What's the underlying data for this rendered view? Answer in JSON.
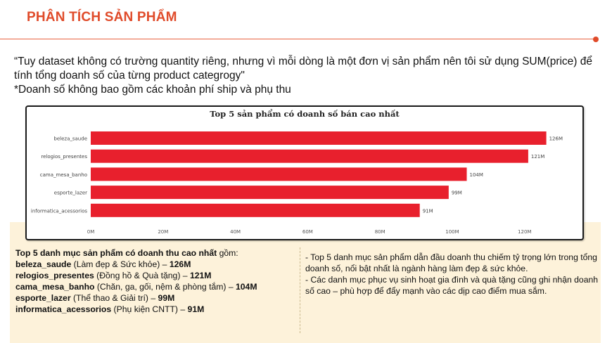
{
  "header": {
    "title": "PHÂN TÍCH SẢN PHẨM"
  },
  "quote": {
    "line1": "“Tuy dataset không có trường quantity riêng, nhưng vì mỗi dòng là một đơn vị sản phẩm nên tôi sử dụng SUM(price) để tính tổng doanh số của từng product categrogy\"",
    "line2": "*Doanh số không bao gồm các khoản phí ship và phụ thu"
  },
  "chart_data": {
    "type": "bar",
    "orientation": "horizontal",
    "title": "Top 5 sản phẩm có doanh số bán cao nhất",
    "categories": [
      "beleza_saude",
      "relogios_presentes",
      "cama_mesa_banho",
      "esporte_lazer",
      "informatica_acessorios"
    ],
    "values": [
      126,
      121,
      104,
      99,
      91
    ],
    "data_labels": [
      "126M",
      "121M",
      "104M",
      "99M",
      "91M"
    ],
    "x_ticks": [
      "0M",
      "20M",
      "40M",
      "60M",
      "80M",
      "100M",
      "120M"
    ],
    "x_tick_values": [
      0,
      20,
      40,
      60,
      80,
      100,
      120
    ],
    "xlim": [
      0,
      136
    ],
    "bar_color": "#e8202d",
    "grid": false,
    "xlabel": "",
    "ylabel": ""
  },
  "left_notes": {
    "heading_bold": "Top 5 danh mục sản phẩm có doanh thu cao nhất",
    "heading_rest": " gồm:",
    "items": [
      {
        "name": "beleza_saude",
        "desc": " (Làm đẹp & Sức khỏe) – ",
        "value": "126M"
      },
      {
        "name": "relogios_presentes",
        "desc": " (Đồng hồ & Quà tặng) – ",
        "value": "121M"
      },
      {
        "name": "cama_mesa_banho",
        "desc": " (Chăn, ga, gối, nệm & phòng tắm) – ",
        "value": "104M"
      },
      {
        "name": "esporte_lazer",
        "desc": " (Thể thao & Giải trí) – ",
        "value": "99M"
      },
      {
        "name": "informatica_acessorios",
        "desc": " (Phụ kiện CNTT) – ",
        "value": "91M"
      }
    ]
  },
  "right_notes": {
    "p1": "- Top 5 danh mục sản phẩm dẫn đầu doanh thu chiếm tỷ trọng lớn trong tổng doanh số, nổi bật nhất là ngành hàng làm đẹp & sức khỏe.",
    "p2": "- Các danh mục phục vụ sinh hoạt gia đình và quà tặng cũng ghi nhận doanh số cao – phù hợp để đẩy mạnh vào các dịp cao điểm mua sắm."
  }
}
